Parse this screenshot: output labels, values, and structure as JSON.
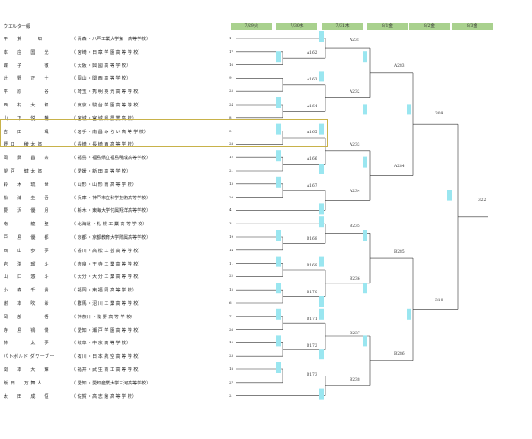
{
  "division": "ウエルター級",
  "dates": [
    "7/29火",
    "7/30水",
    "7/31木",
    "8/1金",
    "8/2金",
    "8/3金"
  ],
  "players": [
    {
      "name": "平 　 賀 　 　 知",
      "school": "（ 青森 ・八戸工業大学第一高等学校）",
      "seed": "1"
    },
    {
      "name": "本 　 庄 　 国 　 光",
      "school": "（ 宮崎 ・日 章 学 園 高 等 学 校）",
      "seed": "17"
    },
    {
      "name": "蝶 　 子 　 　 　 徹",
      "school": "（ 大阪 ・興 國 高 等 学 校）",
      "seed": "16"
    },
    {
      "name": "辻 　 野 　 正 　 士",
      "school": "（ 岡山 ・関 西 高 等 学 校）",
      "seed": "9"
    },
    {
      "name": "平 　 原 　 　 　 谷",
      "school": "（ 埼玉 ・秀 明 英 光 高 等 学 校）",
      "seed": "25"
    },
    {
      "name": "西 　 村 　 大 　 和",
      "school": "（ 東京 ・駿 台 学 園 高 等 学 校）",
      "seed": "24"
    },
    {
      "name": "山 　 下 　 悦 　 輔",
      "school": "（ 宮城 ・宮 城 県 農 業 高 校）",
      "seed": "8"
    },
    {
      "name": "吉 　 田 　 　 　 颯",
      "school": "（ 岩手 ・南 昌 み ら い 高 等 学 校）",
      "seed": "5"
    },
    {
      "name": "野 口 　 稜 太 郎",
      "school": "（ 長崎 ・長 崎 西 高 等 学 校）",
      "seed": "28"
    },
    {
      "name": "岡 　 武 　 昌 　 宗",
      "school": "（ 福島 ・福島県立福島明成高等学校）",
      "seed": "12"
    },
    {
      "name": "望 戸 　 健 太 郎",
      "school": "（ 愛媛 ・新 田 高 等 学 校）",
      "seed": "21"
    },
    {
      "name": "鈴 　 木 　 琉 　 世",
      "school": "（ 山形 ・山 形 南 高 等 学 校）",
      "seed": "13"
    },
    {
      "name": "松 　 浦 　 圭 　 吾",
      "school": "（ 兵庫 ・神戸市立科学技術高等学校）",
      "seed": "20"
    },
    {
      "name": "要 　 沢 　 優 　 月",
      "school": "（ 栃木 ・東海大学付属翔洋高等学校）",
      "seed": "4"
    },
    {
      "name": "南 　 　 　 龍 　 聖",
      "school": "（ 北海道 ・札 幌 工 業 高 等 学 校）",
      "seed": "3"
    },
    {
      "name": "戸 　 島 　 優 　 都",
      "school": "（ 京都 ・京都教育大学附属高等学校）",
      "seed": "19"
    },
    {
      "name": "西 　 山 　 歩 　 夢",
      "school": "（ 香川 ・高 松 工 芸 高 等 学 校）",
      "seed": "14"
    },
    {
      "name": "岩 　 渕 　 瑠 　 斗",
      "school": "（ 奈良 ・王 寺 工 業 高 等 学 校）",
      "seed": "11"
    },
    {
      "name": "山 　 口 　 悠 　 斗",
      "school": "（ 大分 ・大 分 工 業 高 等 学 校）",
      "seed": "22"
    },
    {
      "name": "小 　 森 　 千 　 貴",
      "school": "（ 福岡 ・東 福 岡 高 等 学 校）",
      "seed": "15"
    },
    {
      "name": "謝 　 本 　 吹 　 希",
      "school": "（ 群馬 ・沼 川 工 業 高 等 学 校）",
      "seed": "6"
    },
    {
      "name": "岡 　 部 　 　 　 悟",
      "school": "（ 神奈川 ・浅 野 高 等 学 校）",
      "seed": "7"
    },
    {
      "name": "寺 　 島 　 鴇 　 慢",
      "school": "（ 愛知 ・瀬 戸 学 園 高 等 学 校）",
      "seed": "26"
    },
    {
      "name": "林 　 　 　 太 　 夢",
      "school": "（ 岐阜 ・中 京 高 等 学 校）",
      "seed": "10"
    },
    {
      "name": "パトボルド ダワーブー",
      "school": "（ 石川 ・日 本 航 空 高 等 学 校）",
      "seed": "23"
    },
    {
      "name": "関 　 本 　 大 　 輝",
      "school": "（ 福井 ・武 生 商 工 高 等 学 校）",
      "seed": "18"
    },
    {
      "name": "飯 田 　 万 舞 人",
      "school": "（ 愛知 ・愛知産業大学三河高等学校）",
      "seed": "27"
    },
    {
      "name": "太 　 田 　 成 　 恒",
      "school": "（ 佐賀 ・高 志 館 高 等 学 校）",
      "seed": "2"
    }
  ],
  "match_labels": {
    "A162": "A162",
    "A163": "A163",
    "A164": "A164",
    "A165": "A165",
    "A166": "A166",
    "A167": "A167",
    "A231": "A231",
    "A232": "A232",
    "A233": "A233",
    "A234": "A234",
    "A283": "A283",
    "A284": "A284",
    "B168": "B168",
    "B169": "B169",
    "B170": "B170",
    "B171": "B171",
    "B172": "B172",
    "B173": "B173",
    "B235": "B235",
    "B236": "B236",
    "B237": "B237",
    "B238": "B238",
    "B285": "B285",
    "B286": "B286",
    "S309": "309",
    "S310": "310",
    "F322": "322"
  },
  "colors": {
    "date_header": "#a9d18e",
    "marker": "#9ae6f0",
    "highlight": "#c8b24a"
  }
}
